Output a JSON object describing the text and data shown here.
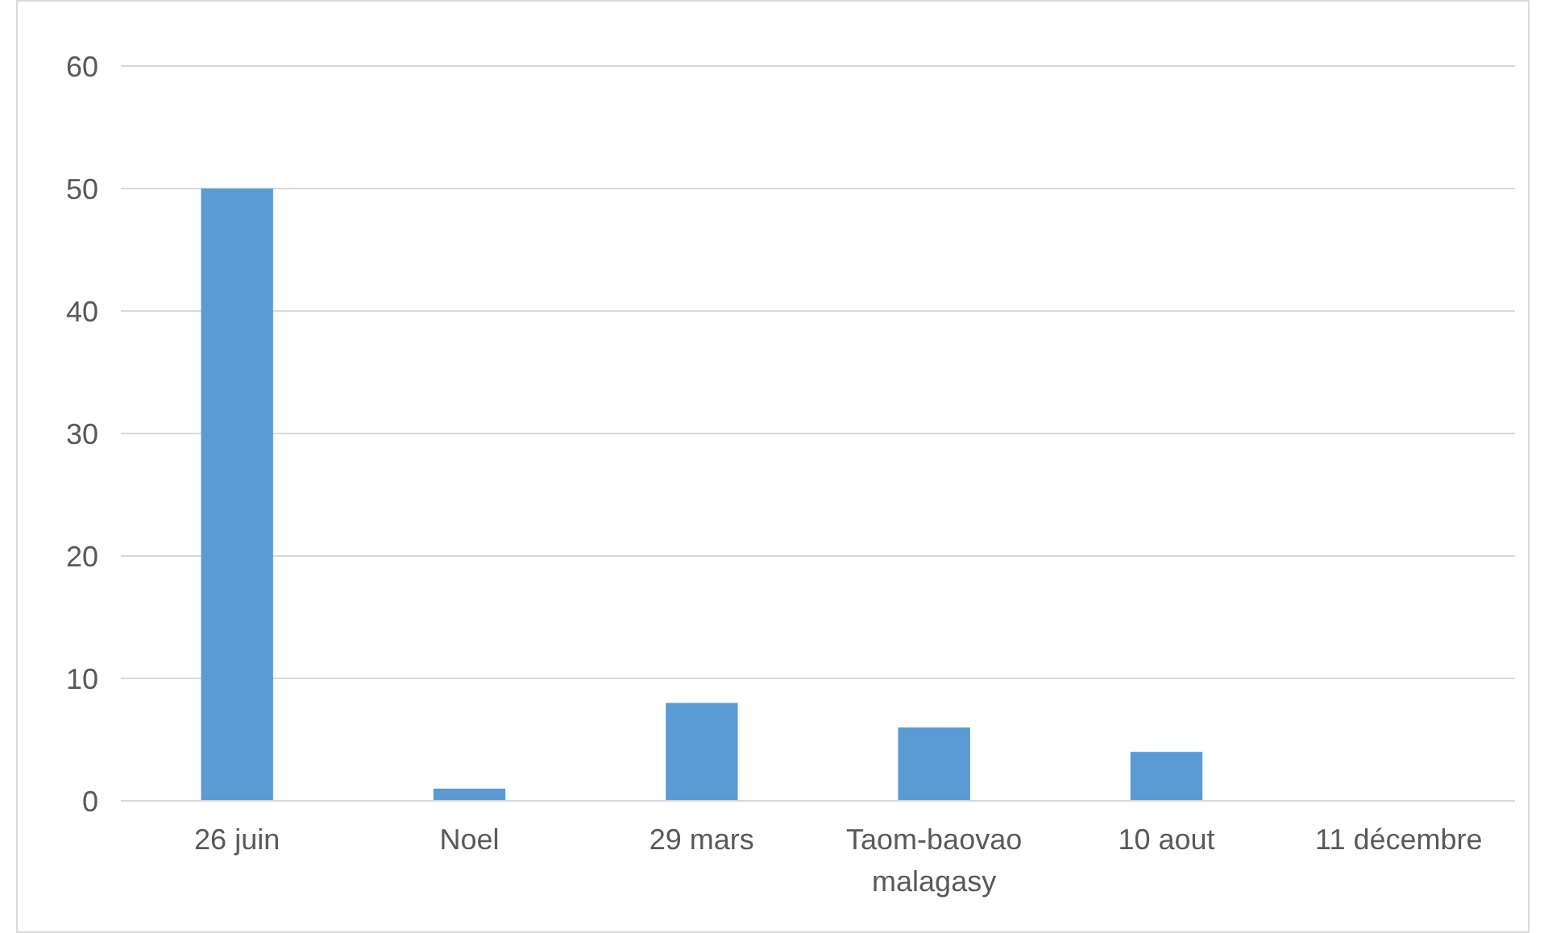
{
  "chart_data": {
    "type": "bar",
    "categories": [
      "26 juin",
      "Noel",
      "29 mars",
      "Taom-baovao malagasy",
      "10 aout",
      "11 décembre"
    ],
    "values": [
      50,
      1,
      8,
      6,
      4,
      0
    ],
    "color": "#5b9bd5",
    "ylim": [
      0,
      60
    ],
    "yticks": [
      0,
      10,
      20,
      30,
      40,
      50,
      60
    ],
    "grid": "y"
  }
}
